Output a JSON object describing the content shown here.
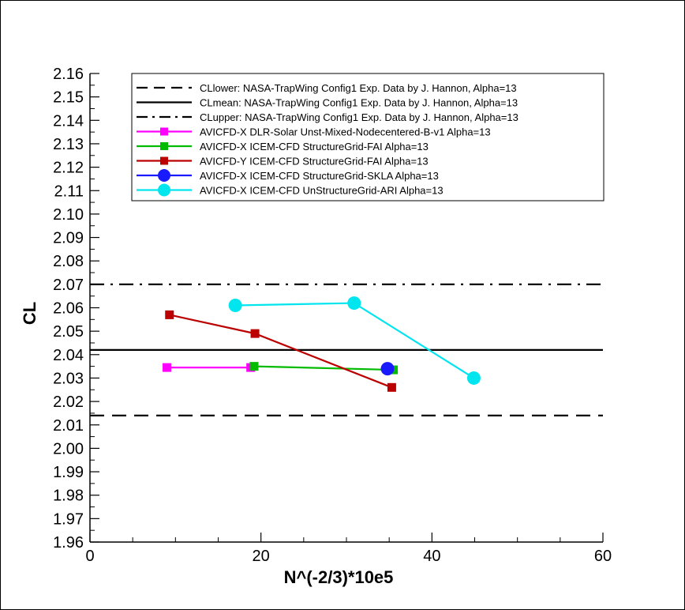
{
  "chart_data": {
    "type": "line",
    "xlabel": "N^(-2/3)*10e5",
    "ylabel": "CL",
    "xlim": [
      0,
      60
    ],
    "ylim": [
      1.96,
      2.16
    ],
    "x_ticks": [
      0,
      20,
      40,
      60
    ],
    "x_tick_labels": [
      "0",
      "20",
      "40",
      "60"
    ],
    "y_ticks": [
      1.96,
      1.97,
      1.98,
      1.99,
      2.0,
      2.01,
      2.02,
      2.03,
      2.04,
      2.05,
      2.06,
      2.07,
      2.08,
      2.09,
      2.1,
      2.11,
      2.12,
      2.13,
      2.14,
      2.15,
      2.16
    ],
    "y_tick_labels": [
      "1.96",
      "1.97",
      "1.98",
      "1.99",
      "2.00",
      "2.01",
      "2.02",
      "2.03",
      "2.04",
      "2.05",
      "2.06",
      "2.07",
      "2.08",
      "2.09",
      "2.10",
      "2.11",
      "2.12",
      "2.13",
      "2.14",
      "2.15",
      "2.16"
    ],
    "grid": false,
    "legend_position": "top",
    "series": [
      {
        "name": "CLlower: NASA-TrapWing Config1 Exp. Data by J. Hannon, Alpha=13",
        "kind": "hline",
        "y": 2.014,
        "color": "#000000",
        "dash": "dash",
        "marker": "none"
      },
      {
        "name": "CLmean: NASA-TrapWing Config1 Exp. Data by J. Hannon, Alpha=13",
        "kind": "hline",
        "y": 2.042,
        "color": "#000000",
        "dash": "solid",
        "marker": "none"
      },
      {
        "name": "CLupper: NASA-TrapWing Config1 Exp. Data by J. Hannon, Alpha=13",
        "kind": "hline",
        "y": 2.07,
        "color": "#000000",
        "dash": "dashdot",
        "marker": "none"
      },
      {
        "name": "AVICFD-X DLR-Solar Unst-Mixed-Nodecentered-B-v1 Alpha=13",
        "kind": "line",
        "color": "#ff00ff",
        "dash": "solid",
        "marker": "square",
        "x": [
          9.0,
          18.8
        ],
        "y": [
          2.0345,
          2.0345
        ]
      },
      {
        "name": "AVICFD-X ICEM-CFD StructureGrid-FAI Alpha=13",
        "kind": "line",
        "color": "#00bb00",
        "dash": "solid",
        "marker": "square",
        "x": [
          19.2,
          35.5
        ],
        "y": [
          2.035,
          2.0335
        ]
      },
      {
        "name": "AVICFD-Y ICEM-CFD StructureGrid-FAI Alpha=13",
        "kind": "line",
        "color": "#bb0000",
        "dash": "solid",
        "marker": "square",
        "x": [
          9.3,
          19.3,
          35.3
        ],
        "y": [
          2.057,
          2.049,
          2.026
        ]
      },
      {
        "name": "AVICFD-X ICEM-CFD StructureGrid-SKLA Alpha=13",
        "kind": "line",
        "color": "#1a1aff",
        "dash": "solid",
        "marker": "circle",
        "x": [
          34.8
        ],
        "y": [
          2.034
        ]
      },
      {
        "name": "AVICFD-X ICEM-CFD UnStructureGrid-ARI Alpha=13",
        "kind": "line",
        "color": "#00e5ee",
        "dash": "solid",
        "marker": "circle",
        "x": [
          17.0,
          30.9,
          44.9
        ],
        "y": [
          2.061,
          2.062,
          2.03
        ]
      }
    ]
  }
}
